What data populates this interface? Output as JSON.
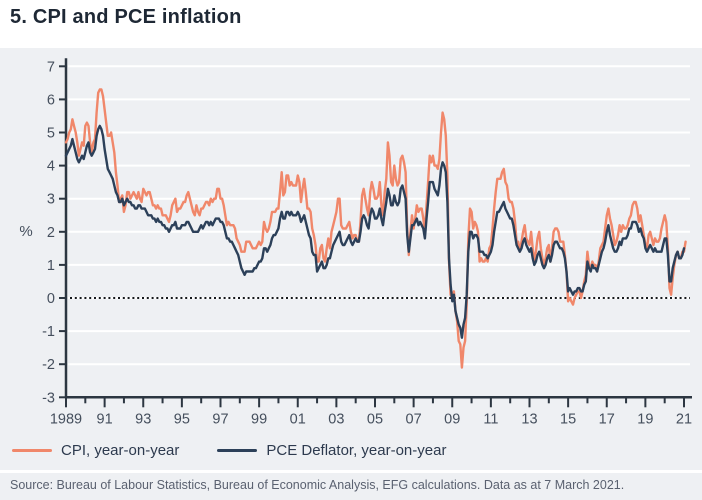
{
  "page": {
    "title": "5. CPI and PCE inflation",
    "source": "Source: Bureau of Labour Statistics, Bureau of Economic Analysis, EFG calculations. Data as at 7 March 2021."
  },
  "chart_data": {
    "type": "line",
    "title": "5. CPI and PCE inflation",
    "xlabel": "",
    "ylabel": "%",
    "ylim": [
      -3,
      7
    ],
    "xlim": [
      1989,
      2021.4
    ],
    "grid": "horizontal white gridlines on light gray plot background",
    "zero_line": "black dotted line at 0",
    "legend_position": "bottom",
    "y_ticks": [
      7,
      6,
      5,
      4,
      3,
      2,
      1,
      0,
      -1,
      -2,
      -3
    ],
    "x_tick_years": [
      1989,
      1991,
      1993,
      1995,
      1997,
      1999,
      2001,
      2003,
      2005,
      2007,
      2009,
      2011,
      2013,
      2015,
      2017,
      2019,
      2021
    ],
    "x_tick_labels": [
      "1989",
      "91",
      "93",
      "95",
      "97",
      "99",
      "01",
      "03",
      "05",
      "07",
      "09",
      "11",
      "13",
      "15",
      "17",
      "19",
      "21"
    ],
    "series": [
      {
        "name": "CPI, year-on-year",
        "color": "#F0876A",
        "start_year": 1989,
        "frequency": "monthly",
        "values": [
          4.7,
          4.8,
          5.0,
          5.1,
          5.4,
          5.2,
          5.0,
          4.7,
          4.3,
          4.5,
          4.7,
          4.6,
          5.2,
          5.3,
          5.2,
          4.7,
          4.4,
          4.7,
          4.8,
          5.6,
          6.2,
          6.3,
          6.3,
          6.1,
          5.7,
          5.3,
          4.9,
          4.9,
          5.0,
          4.7,
          4.4,
          3.8,
          3.4,
          2.9,
          3.0,
          3.1,
          2.6,
          2.8,
          3.2,
          3.2,
          3.0,
          3.1,
          3.2,
          3.1,
          3.0,
          3.2,
          3.0,
          2.9,
          3.3,
          3.2,
          3.1,
          3.2,
          3.2,
          3.0,
          2.8,
          2.8,
          2.7,
          2.8,
          2.7,
          2.7,
          2.5,
          2.5,
          2.5,
          2.4,
          2.3,
          2.5,
          2.8,
          2.9,
          3.0,
          2.6,
          2.7,
          2.7,
          2.8,
          2.9,
          2.9,
          3.1,
          3.2,
          3.0,
          2.8,
          2.6,
          2.5,
          2.8,
          2.6,
          2.5,
          2.7,
          2.7,
          2.8,
          2.9,
          2.9,
          2.8,
          3.0,
          2.9,
          3.0,
          3.0,
          3.3,
          3.3,
          3.0,
          3.0,
          2.8,
          2.5,
          2.2,
          2.3,
          2.2,
          2.2,
          2.2,
          2.1,
          1.8,
          1.7,
          1.6,
          1.4,
          1.4,
          1.4,
          1.7,
          1.7,
          1.7,
          1.6,
          1.5,
          1.5,
          1.5,
          1.6,
          1.7,
          1.6,
          1.7,
          2.3,
          2.1,
          2.0,
          2.1,
          2.3,
          2.6,
          2.6,
          2.6,
          2.7,
          2.7,
          3.2,
          3.8,
          3.1,
          3.2,
          3.7,
          3.7,
          3.4,
          3.5,
          3.4,
          3.4,
          3.4,
          3.7,
          3.5,
          2.9,
          3.3,
          3.6,
          3.2,
          2.7,
          2.7,
          2.6,
          2.1,
          1.9,
          1.6,
          1.1,
          1.1,
          1.5,
          1.6,
          1.2,
          1.1,
          1.5,
          1.8,
          1.5,
          2.0,
          2.2,
          2.4,
          2.6,
          3.0,
          3.0,
          2.2,
          2.1,
          2.1,
          2.1,
          2.2,
          2.3,
          2.0,
          1.8,
          1.9,
          1.9,
          1.7,
          1.7,
          2.3,
          3.1,
          3.3,
          3.0,
          2.7,
          2.5,
          3.2,
          3.5,
          3.3,
          3.0,
          3.0,
          3.1,
          3.5,
          2.8,
          2.5,
          3.2,
          3.6,
          4.7,
          4.3,
          3.5,
          3.4,
          4.0,
          3.6,
          3.4,
          3.5,
          4.2,
          4.3,
          4.1,
          3.8,
          2.1,
          1.3,
          2.0,
          2.5,
          2.1,
          2.4,
          2.8,
          2.6,
          2.7,
          2.7,
          2.4,
          2.0,
          2.8,
          3.5,
          4.3,
          4.1,
          4.3,
          4.0,
          4.0,
          3.9,
          4.2,
          5.0,
          5.6,
          5.4,
          4.9,
          3.7,
          1.1,
          0.1,
          0.0,
          0.2,
          -0.4,
          -0.7,
          -1.3,
          -1.4,
          -2.1,
          -1.5,
          -1.3,
          -0.2,
          1.8,
          2.7,
          2.6,
          2.1,
          2.3,
          2.2,
          2.0,
          1.1,
          1.2,
          1.1,
          1.1,
          1.2,
          1.1,
          1.5,
          1.6,
          2.1,
          2.7,
          3.2,
          3.6,
          3.6,
          3.6,
          3.8,
          3.9,
          3.5,
          3.4,
          3.0,
          2.9,
          2.9,
          2.7,
          2.3,
          1.7,
          1.7,
          1.4,
          1.7,
          2.0,
          2.2,
          1.8,
          1.7,
          1.6,
          2.0,
          1.5,
          1.1,
          1.4,
          1.8,
          2.0,
          1.5,
          1.2,
          1.0,
          1.2,
          1.5,
          1.6,
          1.1,
          1.5,
          2.0,
          2.1,
          2.1,
          2.0,
          1.7,
          1.7,
          1.7,
          1.3,
          0.8,
          -0.1,
          0.0,
          -0.1,
          -0.2,
          0.0,
          0.1,
          0.2,
          0.2,
          0.0,
          0.2,
          0.5,
          0.7,
          1.4,
          1.0,
          0.9,
          1.1,
          1.0,
          1.0,
          0.8,
          1.1,
          1.5,
          1.6,
          1.7,
          2.1,
          2.5,
          2.7,
          2.4,
          2.2,
          1.9,
          1.6,
          1.7,
          1.9,
          2.2,
          2.0,
          2.2,
          2.1,
          2.1,
          2.2,
          2.4,
          2.5,
          2.8,
          2.9,
          2.9,
          2.7,
          2.3,
          2.5,
          2.2,
          1.9,
          1.6,
          1.5,
          1.9,
          2.0,
          1.8,
          1.6,
          1.8,
          1.7,
          1.7,
          1.8,
          2.1,
          2.3,
          2.5,
          2.3,
          1.5,
          0.3,
          0.1,
          0.6,
          1.0,
          1.3,
          1.4,
          1.2,
          1.2,
          1.4,
          1.4,
          1.7
        ]
      },
      {
        "name": "PCE Deflator, year-on-year",
        "color": "#2C4059",
        "start_year": 1989,
        "frequency": "monthly",
        "values": [
          4.3,
          4.4,
          4.5,
          4.6,
          4.8,
          4.6,
          4.4,
          4.2,
          4.1,
          4.2,
          4.3,
          4.2,
          4.4,
          4.6,
          4.7,
          4.4,
          4.3,
          4.4,
          4.5,
          4.9,
          5.1,
          5.2,
          5.1,
          4.9,
          4.5,
          4.2,
          3.9,
          3.8,
          3.7,
          3.6,
          3.4,
          3.2,
          3.1,
          2.9,
          2.9,
          3.0,
          2.8,
          2.9,
          3.0,
          2.9,
          2.9,
          2.8,
          2.8,
          2.7,
          2.7,
          2.8,
          2.8,
          2.7,
          2.7,
          2.7,
          2.6,
          2.5,
          2.5,
          2.5,
          2.4,
          2.4,
          2.3,
          2.4,
          2.3,
          2.3,
          2.2,
          2.2,
          2.1,
          2.1,
          2.0,
          2.1,
          2.2,
          2.2,
          2.3,
          2.1,
          2.1,
          2.1,
          2.2,
          2.2,
          2.2,
          2.3,
          2.3,
          2.2,
          2.1,
          2.0,
          2.0,
          2.0,
          2.0,
          2.1,
          2.2,
          2.1,
          2.2,
          2.3,
          2.3,
          2.2,
          2.3,
          2.2,
          2.3,
          2.4,
          2.4,
          2.4,
          2.3,
          2.3,
          2.2,
          2.0,
          1.8,
          1.8,
          1.7,
          1.7,
          1.6,
          1.5,
          1.4,
          1.3,
          1.1,
          0.9,
          0.8,
          0.7,
          0.8,
          0.8,
          0.8,
          0.8,
          0.8,
          0.9,
          0.9,
          1.0,
          1.1,
          1.1,
          1.2,
          1.5,
          1.5,
          1.4,
          1.5,
          1.6,
          1.8,
          1.9,
          1.9,
          2.0,
          2.1,
          2.4,
          2.6,
          2.4,
          2.4,
          2.6,
          2.6,
          2.5,
          2.6,
          2.5,
          2.5,
          2.5,
          2.6,
          2.5,
          2.3,
          2.4,
          2.5,
          2.3,
          2.1,
          1.9,
          1.8,
          1.4,
          1.3,
          1.3,
          0.8,
          0.9,
          1.0,
          1.1,
          0.9,
          0.9,
          1.0,
          1.2,
          1.2,
          1.4,
          1.6,
          1.7,
          1.8,
          1.9,
          2.0,
          1.7,
          1.6,
          1.6,
          1.7,
          1.8,
          1.9,
          1.7,
          1.6,
          1.7,
          1.8,
          1.7,
          1.7,
          2.0,
          2.4,
          2.5,
          2.4,
          2.2,
          2.1,
          2.5,
          2.7,
          2.6,
          2.4,
          2.4,
          2.5,
          2.7,
          2.4,
          2.2,
          2.6,
          2.9,
          3.3,
          3.1,
          2.8,
          2.8,
          3.1,
          2.9,
          2.8,
          2.9,
          3.3,
          3.4,
          3.2,
          3.0,
          1.9,
          1.4,
          1.8,
          2.2,
          2.2,
          2.3,
          2.4,
          2.2,
          2.3,
          2.2,
          2.1,
          1.8,
          2.4,
          2.9,
          3.5,
          3.5,
          3.5,
          3.3,
          3.2,
          3.1,
          3.4,
          3.9,
          4.1,
          4.0,
          3.8,
          2.9,
          1.2,
          0.4,
          -0.1,
          0.1,
          -0.4,
          -0.6,
          -0.8,
          -0.9,
          -1.2,
          -0.8,
          -0.6,
          0.1,
          1.4,
          2.0,
          2.0,
          1.8,
          1.9,
          1.9,
          1.8,
          1.4,
          1.4,
          1.4,
          1.3,
          1.3,
          1.2,
          1.3,
          1.4,
          1.6,
          2.0,
          2.3,
          2.6,
          2.6,
          2.7,
          2.8,
          2.9,
          2.7,
          2.6,
          2.5,
          2.4,
          2.4,
          2.2,
          1.9,
          1.6,
          1.5,
          1.4,
          1.5,
          1.7,
          1.8,
          1.6,
          1.5,
          1.4,
          1.5,
          1.2,
          1.0,
          1.1,
          1.3,
          1.4,
          1.2,
          1.0,
          0.9,
          1.0,
          1.2,
          1.3,
          1.1,
          1.3,
          1.6,
          1.7,
          1.7,
          1.6,
          1.5,
          1.5,
          1.4,
          1.2,
          0.8,
          0.2,
          0.3,
          0.2,
          0.1,
          0.2,
          0.2,
          0.3,
          0.3,
          0.2,
          0.2,
          0.4,
          0.5,
          1.1,
          0.9,
          0.8,
          1.0,
          0.9,
          0.9,
          0.8,
          1.0,
          1.2,
          1.4,
          1.5,
          1.7,
          2.0,
          2.2,
          1.9,
          1.7,
          1.5,
          1.4,
          1.4,
          1.5,
          1.7,
          1.6,
          1.8,
          1.8,
          1.8,
          1.9,
          2.1,
          2.1,
          2.3,
          2.3,
          2.3,
          2.2,
          2.0,
          2.1,
          1.9,
          1.8,
          1.5,
          1.4,
          1.5,
          1.6,
          1.5,
          1.4,
          1.5,
          1.4,
          1.4,
          1.4,
          1.4,
          1.6,
          1.8,
          1.8,
          1.3,
          0.5,
          0.5,
          0.9,
          1.1,
          1.3,
          1.4,
          1.2,
          1.2,
          1.3,
          1.5
        ]
      }
    ]
  }
}
